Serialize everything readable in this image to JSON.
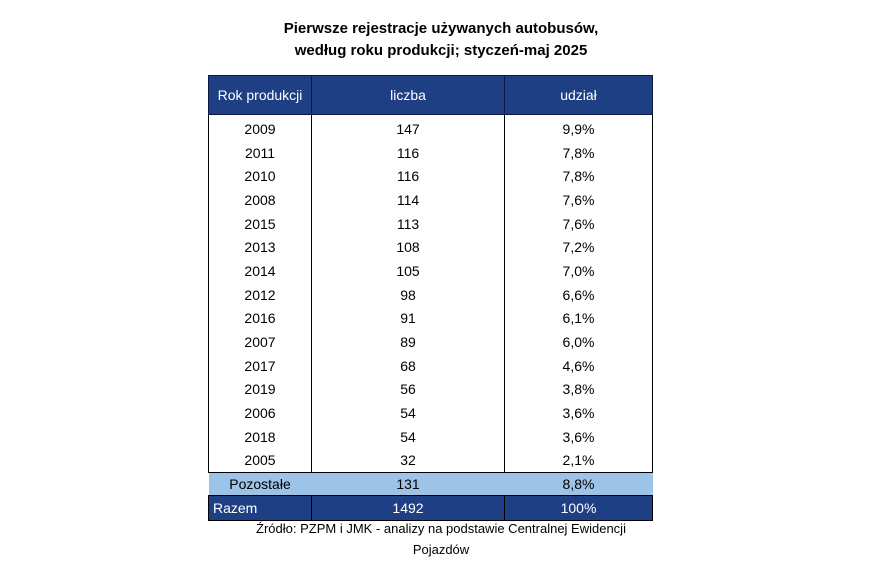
{
  "chart_data": {
    "type": "table",
    "title_lines": [
      "Pierwsze rejestracje używanych autobusów,",
      "według roku produkcji; styczeń-maj 2025"
    ],
    "columns": [
      "Rok produkcji",
      "liczba",
      "udział"
    ],
    "rows": [
      {
        "year": "2009",
        "count": "147",
        "share": "9,9%"
      },
      {
        "year": "2011",
        "count": "116",
        "share": "7,8%"
      },
      {
        "year": "2010",
        "count": "116",
        "share": "7,8%"
      },
      {
        "year": "2008",
        "count": "114",
        "share": "7,6%"
      },
      {
        "year": "2015",
        "count": "113",
        "share": "7,6%"
      },
      {
        "year": "2013",
        "count": "108",
        "share": "7,2%"
      },
      {
        "year": "2014",
        "count": "105",
        "share": "7,0%"
      },
      {
        "year": "2012",
        "count": "98",
        "share": "6,6%"
      },
      {
        "year": "2016",
        "count": "91",
        "share": "6,1%"
      },
      {
        "year": "2007",
        "count": "89",
        "share": "6,0%"
      },
      {
        "year": "2017",
        "count": "68",
        "share": "4,6%"
      },
      {
        "year": "2019",
        "count": "56",
        "share": "3,8%"
      },
      {
        "year": "2006",
        "count": "54",
        "share": "3,6%"
      },
      {
        "year": "2018",
        "count": "54",
        "share": "3,6%"
      },
      {
        "year": "2005",
        "count": "32",
        "share": "2,1%"
      }
    ],
    "others": {
      "label": "Pozostałe",
      "count": "131",
      "share": "8,8%"
    },
    "total": {
      "label": "Razem",
      "count": "1492",
      "share": "100%"
    },
    "source_lines": [
      "Źródło: PZPM i JMK - analizy na podstawie Centralnej Ewidencji",
      "Pojazdów"
    ],
    "colors": {
      "header_bg": "#1f3f84",
      "others_bg": "#9dc3e6",
      "header_text": "#ffffff"
    }
  }
}
